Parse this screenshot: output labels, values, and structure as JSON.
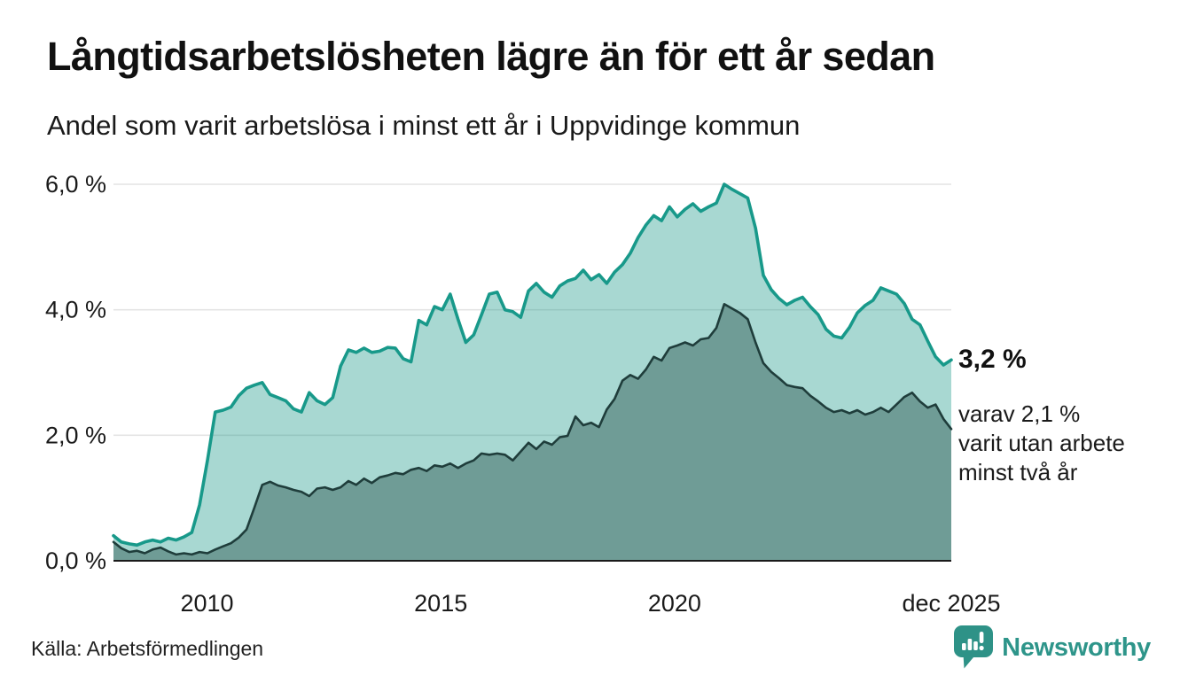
{
  "header": {
    "title": "Långtidsarbetslösheten lägre än för ett år sedan",
    "subtitle": "Andel som varit arbetslösa i minst ett år i Uppvidinge kommun"
  },
  "annotations": {
    "latest_value_label": "3,2 %",
    "secondary_label": "varav 2,1 %\nvarit utan arbete\nminst två år"
  },
  "footer": {
    "source": "Källa: Arbetsförmedlingen",
    "brand": "Newsworthy"
  },
  "chart_data": {
    "type": "area",
    "title": "Långtidsarbetslösheten lägre än för ett år sedan",
    "subtitle": "Andel som varit arbetslösa i minst ett år i Uppvidinge kommun",
    "xlabel": "",
    "ylabel": "",
    "xlim": [
      2008,
      2025.9167
    ],
    "ylim": [
      0,
      6.4
    ],
    "grid": "horizontal-only",
    "legend": "none",
    "y_ticks": [
      {
        "value": 0,
        "label": "0,0 %"
      },
      {
        "value": 2,
        "label": "2,0 %"
      },
      {
        "value": 4,
        "label": "4,0 %"
      },
      {
        "value": 6,
        "label": "6,0 %"
      }
    ],
    "x_ticks": [
      {
        "value": 2010,
        "label": "2010"
      },
      {
        "value": 2015,
        "label": "2015"
      },
      {
        "value": 2020,
        "label": "2020"
      },
      {
        "value": 2025.9167,
        "label": "dec 2025"
      }
    ],
    "colors": {
      "accent_teal": "#18998a",
      "light_fill": "rgba(25,153,138,0.38)",
      "dark_fill": "#6f9c96",
      "dark_line": "#1f3d3b",
      "grid": "#e4e4e4",
      "axis": "#1a1a1a",
      "text": "#1a1a1a",
      "brand_teal": "#2e958a"
    },
    "series": [
      {
        "name": "Arbetslösa minst ett år",
        "end_value_label": "3,2 %",
        "color": "#18998a",
        "fill": "rgba(25,153,138,0.38)",
        "values": [
          0.4,
          0.3,
          0.27,
          0.25,
          0.3,
          0.33,
          0.3,
          0.36,
          0.33,
          0.38,
          0.45,
          0.89,
          1.6,
          2.37,
          2.4,
          2.45,
          2.63,
          2.75,
          2.8,
          2.84,
          2.65,
          2.6,
          2.55,
          2.42,
          2.37,
          2.68,
          2.55,
          2.49,
          2.6,
          3.1,
          3.36,
          3.32,
          3.39,
          3.32,
          3.34,
          3.4,
          3.39,
          3.22,
          3.17,
          3.83,
          3.76,
          4.05,
          4.0,
          4.25,
          3.85,
          3.48,
          3.6,
          3.92,
          4.25,
          4.28,
          4.0,
          3.97,
          3.88,
          4.3,
          4.42,
          4.28,
          4.2,
          4.38,
          4.46,
          4.5,
          4.63,
          4.48,
          4.56,
          4.42,
          4.6,
          4.72,
          4.9,
          5.15,
          5.35,
          5.5,
          5.42,
          5.64,
          5.48,
          5.6,
          5.69,
          5.57,
          5.64,
          5.7,
          6.0,
          5.92,
          5.85,
          5.78,
          5.3,
          4.55,
          4.32,
          4.18,
          4.08,
          4.15,
          4.2,
          4.05,
          3.92,
          3.69,
          3.58,
          3.55,
          3.72,
          3.95,
          4.07,
          4.15,
          4.35,
          4.3,
          4.25,
          4.1,
          3.85,
          3.76,
          3.5,
          3.25,
          3.12,
          3.2
        ]
      },
      {
        "name": "Varav utan arbete minst två år",
        "end_value_label": "2,1 %",
        "color": "#1f3d3b",
        "fill": "#6f9c96",
        "values": [
          0.3,
          0.2,
          0.14,
          0.16,
          0.12,
          0.18,
          0.21,
          0.15,
          0.1,
          0.12,
          0.1,
          0.14,
          0.12,
          0.18,
          0.23,
          0.28,
          0.37,
          0.5,
          0.85,
          1.21,
          1.26,
          1.2,
          1.17,
          1.13,
          1.1,
          1.03,
          1.15,
          1.17,
          1.13,
          1.17,
          1.27,
          1.21,
          1.31,
          1.24,
          1.33,
          1.36,
          1.4,
          1.38,
          1.45,
          1.48,
          1.43,
          1.52,
          1.5,
          1.55,
          1.48,
          1.55,
          1.6,
          1.71,
          1.69,
          1.71,
          1.69,
          1.6,
          1.74,
          1.88,
          1.78,
          1.9,
          1.85,
          1.97,
          1.99,
          2.3,
          2.16,
          2.2,
          2.13,
          2.41,
          2.58,
          2.87,
          2.96,
          2.9,
          3.05,
          3.25,
          3.19,
          3.39,
          3.43,
          3.48,
          3.43,
          3.53,
          3.55,
          3.71,
          4.09,
          4.02,
          3.95,
          3.85,
          3.48,
          3.15,
          3.01,
          2.91,
          2.8,
          2.77,
          2.75,
          2.63,
          2.54,
          2.44,
          2.37,
          2.4,
          2.35,
          2.4,
          2.33,
          2.37,
          2.44,
          2.37,
          2.49,
          2.61,
          2.68,
          2.54,
          2.44,
          2.49,
          2.26,
          2.1
        ]
      }
    ]
  }
}
